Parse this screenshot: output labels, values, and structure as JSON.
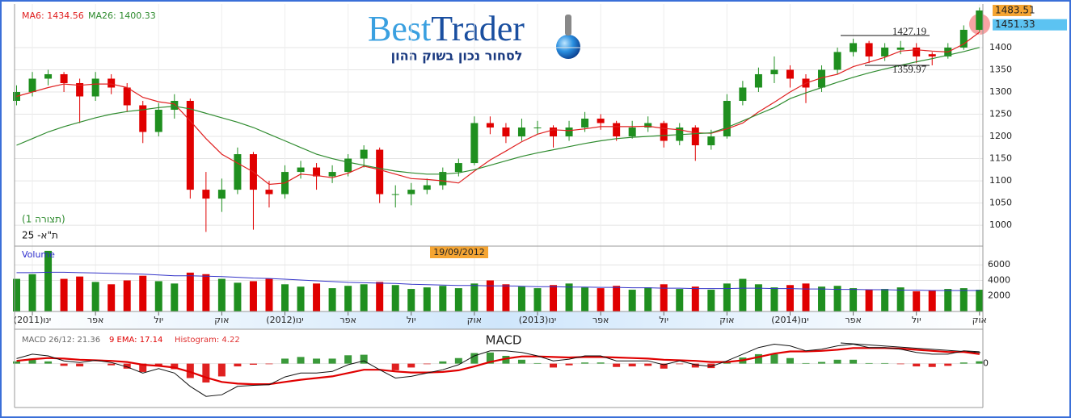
{
  "logo": {
    "brand_first": "Best",
    "brand_second": "Trader",
    "tagline": "לסחור נכון בשוק ההון"
  },
  "chart_data": [
    {
      "type": "candlestick",
      "categories": [
        null,
        "(2011)ינו",
        null,
        null,
        null,
        "אפר",
        null,
        null,
        null,
        "יול",
        null,
        null,
        null,
        "אוק",
        null,
        null,
        null,
        "(2012)ינו",
        null,
        null,
        null,
        "אפר",
        null,
        null,
        null,
        "יול",
        null,
        null,
        null,
        "אוק",
        null,
        null,
        null,
        "(2013)ינו",
        null,
        null,
        null,
        "אפר",
        null,
        null,
        null,
        "יול",
        null,
        null,
        null,
        "אוק",
        null,
        null,
        null,
        "(2014)ינו",
        null,
        null,
        null,
        "אפר",
        null,
        null,
        null,
        "יול",
        null,
        null,
        null,
        "אוק"
      ],
      "open": [
        1280,
        1300,
        1330,
        1340,
        1320,
        1290,
        1330,
        1310,
        1270,
        1210,
        1260,
        1280,
        1080,
        1060,
        1080,
        1160,
        1080,
        1070,
        1120,
        1130,
        1110,
        1120,
        1150,
        1170,
        1070,
        1070,
        1080,
        1090,
        1120,
        1140,
        1230,
        1220,
        1200,
        1220,
        1220,
        1200,
        1220,
        1240,
        1230,
        1200,
        1220,
        1230,
        1190,
        1220,
        1180,
        1200,
        1280,
        1310,
        1340,
        1350,
        1330,
        1310,
        1350,
        1390,
        1410,
        1380,
        1395,
        1400,
        1385,
        1380,
        1400,
        1440
      ],
      "high": [
        1315,
        1345,
        1350,
        1345,
        1330,
        1345,
        1340,
        1320,
        1280,
        1275,
        1295,
        1285,
        1120,
        1105,
        1175,
        1165,
        1100,
        1135,
        1145,
        1140,
        1135,
        1160,
        1180,
        1175,
        1090,
        1095,
        1105,
        1130,
        1150,
        1245,
        1245,
        1230,
        1240,
        1235,
        1225,
        1235,
        1255,
        1250,
        1235,
        1235,
        1245,
        1235,
        1230,
        1225,
        1215,
        1295,
        1325,
        1355,
        1380,
        1360,
        1340,
        1360,
        1400,
        1420,
        1415,
        1410,
        1415,
        1410,
        1390,
        1410,
        1450,
        1490
      ],
      "low": [
        1270,
        1290,
        1315,
        1300,
        1230,
        1280,
        1295,
        1255,
        1185,
        1200,
        1240,
        1060,
        985,
        1030,
        1070,
        990,
        1040,
        1060,
        1105,
        1080,
        1095,
        1110,
        1130,
        1050,
        1040,
        1045,
        1070,
        1080,
        1110,
        1135,
        1205,
        1185,
        1190,
        1205,
        1175,
        1190,
        1210,
        1215,
        1190,
        1195,
        1210,
        1175,
        1180,
        1145,
        1170,
        1195,
        1270,
        1300,
        1320,
        1310,
        1275,
        1300,
        1340,
        1380,
        1365,
        1370,
        1385,
        1365,
        1360,
        1375,
        1395,
        1435
      ],
      "close": [
        1300,
        1330,
        1340,
        1320,
        1290,
        1330,
        1310,
        1270,
        1210,
        1260,
        1280,
        1080,
        1060,
        1080,
        1160,
        1080,
        1070,
        1120,
        1130,
        1110,
        1120,
        1150,
        1170,
        1070,
        1070,
        1080,
        1090,
        1120,
        1140,
        1230,
        1220,
        1200,
        1220,
        1220,
        1200,
        1220,
        1240,
        1230,
        1200,
        1220,
        1230,
        1190,
        1220,
        1180,
        1200,
        1280,
        1310,
        1340,
        1350,
        1330,
        1310,
        1350,
        1390,
        1410,
        1380,
        1400,
        1400,
        1380,
        1380,
        1400,
        1440,
        1483.51
      ],
      "up_color": "#1f8f1f",
      "down_color": "#e00000",
      "series": [
        {
          "name": "MA6: 1434.56",
          "color": "#e02020",
          "values": [
            1290,
            1300,
            1310,
            1318,
            1315,
            1318,
            1318,
            1310,
            1288,
            1278,
            1273,
            1235,
            1195,
            1160,
            1140,
            1120,
            1092,
            1095,
            1115,
            1112,
            1107,
            1117,
            1133,
            1125,
            1115,
            1105,
            1103,
            1100,
            1095,
            1122,
            1147,
            1167,
            1188,
            1205,
            1215,
            1213,
            1217,
            1222,
            1222,
            1222,
            1223,
            1218,
            1215,
            1208,
            1207,
            1217,
            1230,
            1255,
            1277,
            1300,
            1320,
            1332,
            1340,
            1357,
            1367,
            1378,
            1392,
            1395,
            1392,
            1390,
            1408,
            1434.56
          ]
        },
        {
          "name": "MA26: 1400.33",
          "color": "#2e8b2e",
          "values": [
            1180,
            1195,
            1210,
            1222,
            1232,
            1242,
            1250,
            1256,
            1260,
            1265,
            1268,
            1262,
            1252,
            1242,
            1232,
            1220,
            1205,
            1190,
            1175,
            1160,
            1150,
            1142,
            1135,
            1128,
            1122,
            1118,
            1115,
            1115,
            1118,
            1125,
            1135,
            1145,
            1155,
            1163,
            1170,
            1177,
            1184,
            1190,
            1195,
            1198,
            1200,
            1202,
            1204,
            1206,
            1208,
            1220,
            1235,
            1250,
            1265,
            1285,
            1298,
            1310,
            1322,
            1333,
            1343,
            1352,
            1360,
            1368,
            1375,
            1383,
            1391,
            1400.33
          ]
        }
      ],
      "ylim": [
        953,
        1498
      ],
      "yticks": [
        1000,
        1050,
        1100,
        1150,
        1200,
        1250,
        1300,
        1350,
        1400
      ],
      "grid": true,
      "markers": [
        {
          "value": 1483.51,
          "color": "#f5a533"
        },
        {
          "value": 1451.33,
          "color": "#5cc3f2"
        }
      ],
      "levels": [
        1427.19,
        1359.97
      ],
      "annotations": [
        "(תצורה 1)",
        "ת\"א- 25"
      ],
      "crosshair_date": "19/09/2012"
    },
    {
      "type": "bar",
      "title": "Volume",
      "values": [
        4200,
        4800,
        7800,
        4200,
        4500,
        3800,
        3500,
        4000,
        4600,
        3900,
        3600,
        5000,
        4800,
        4200,
        3700,
        3900,
        4200,
        3500,
        3200,
        3600,
        3000,
        3300,
        3500,
        3800,
        3400,
        2900,
        3100,
        3300,
        3000,
        3600,
        4000,
        3500,
        3200,
        3000,
        3400,
        3600,
        3100,
        3000,
        3300,
        2800,
        3100,
        3500,
        2900,
        3200,
        2800,
        3600,
        4200,
        3500,
        3100,
        3400,
        3600,
        3200,
        3300,
        3000,
        2800,
        2900,
        3100,
        2600,
        2700,
        2900,
        3000,
        2800
      ],
      "line_values": [
        5000,
        5000,
        5050,
        5050,
        5000,
        4950,
        4900,
        4850,
        4800,
        4700,
        4600,
        4600,
        4550,
        4500,
        4400,
        4300,
        4250,
        4150,
        4050,
        3950,
        3850,
        3750,
        3700,
        3650,
        3600,
        3500,
        3450,
        3400,
        3350,
        3350,
        3300,
        3300,
        3250,
        3200,
        3200,
        3150,
        3150,
        3100,
        3100,
        3050,
        3050,
        3000,
        3000,
        2950,
        2950,
        2950,
        3000,
        3000,
        2950,
        2950,
        2900,
        2900,
        2850,
        2850,
        2800,
        2800,
        2750,
        2750,
        2700,
        2700,
        2700,
        2700
      ],
      "line_color": "#3535c8",
      "ylim": [
        0,
        8100
      ],
      "yticks": [
        2000,
        4000,
        6000
      ]
    },
    {
      "type": "macd",
      "title": "MACD",
      "series": [
        {
          "name": "MACD 26/12: 21.36",
          "color": "#111111",
          "values": [
            9,
            17,
            14,
            5,
            2,
            6,
            2,
            -6,
            -17,
            -9,
            -17,
            -41,
            -59,
            -56,
            -41,
            -39,
            -38,
            -24,
            -17,
            -17,
            -14,
            -2,
            5,
            -11,
            -26,
            -23,
            -17,
            -11,
            -2,
            14,
            23,
            23,
            20,
            14,
            5,
            8,
            14,
            14,
            5,
            5,
            5,
            -2,
            5,
            -2,
            -5,
            5,
            17,
            29,
            35,
            32,
            23,
            26,
            32,
            35,
            29,
            29,
            26,
            20,
            17,
            17,
            23,
            21.36
          ]
        },
        {
          "name": "9 EMA: 17.14",
          "color": "#e00000",
          "values": [
            5,
            8,
            10,
            9,
            7,
            6,
            5,
            3,
            -2,
            -4,
            -7,
            -15,
            -25,
            -33,
            -36,
            -37,
            -37,
            -33,
            -29,
            -26,
            -23,
            -17,
            -11,
            -11,
            -14,
            -16,
            -16,
            -15,
            -12,
            -5,
            3,
            9,
            13,
            13,
            12,
            11,
            12,
            12,
            11,
            10,
            9,
            7,
            6,
            5,
            3,
            3,
            6,
            12,
            18,
            22,
            22,
            23,
            25,
            28,
            28,
            28,
            27,
            25,
            23,
            21,
            21,
            17.14
          ]
        },
        {
          "name": "Histogram: 4.22",
          "color": "#e03030",
          "up_color": "#3a9a3a",
          "down_color": "#e02020",
          "values": [
            4,
            9,
            4,
            -4,
            -5,
            0,
            -3,
            -9,
            -15,
            -5,
            -10,
            -26,
            -34,
            -23,
            -5,
            -2,
            -1,
            9,
            12,
            9,
            9,
            15,
            16,
            0,
            -12,
            -7,
            -1,
            4,
            10,
            19,
            20,
            14,
            7,
            1,
            -7,
            -3,
            2,
            2,
            -6,
            -5,
            -4,
            -9,
            -1,
            -7,
            -8,
            2,
            11,
            17,
            17,
            10,
            1,
            3,
            7,
            7,
            1,
            1,
            -1,
            -5,
            -6,
            -4,
            2,
            4.22
          ]
        }
      ],
      "ylim": [
        -79,
        59
      ],
      "yticks": [
        0
      ]
    }
  ]
}
